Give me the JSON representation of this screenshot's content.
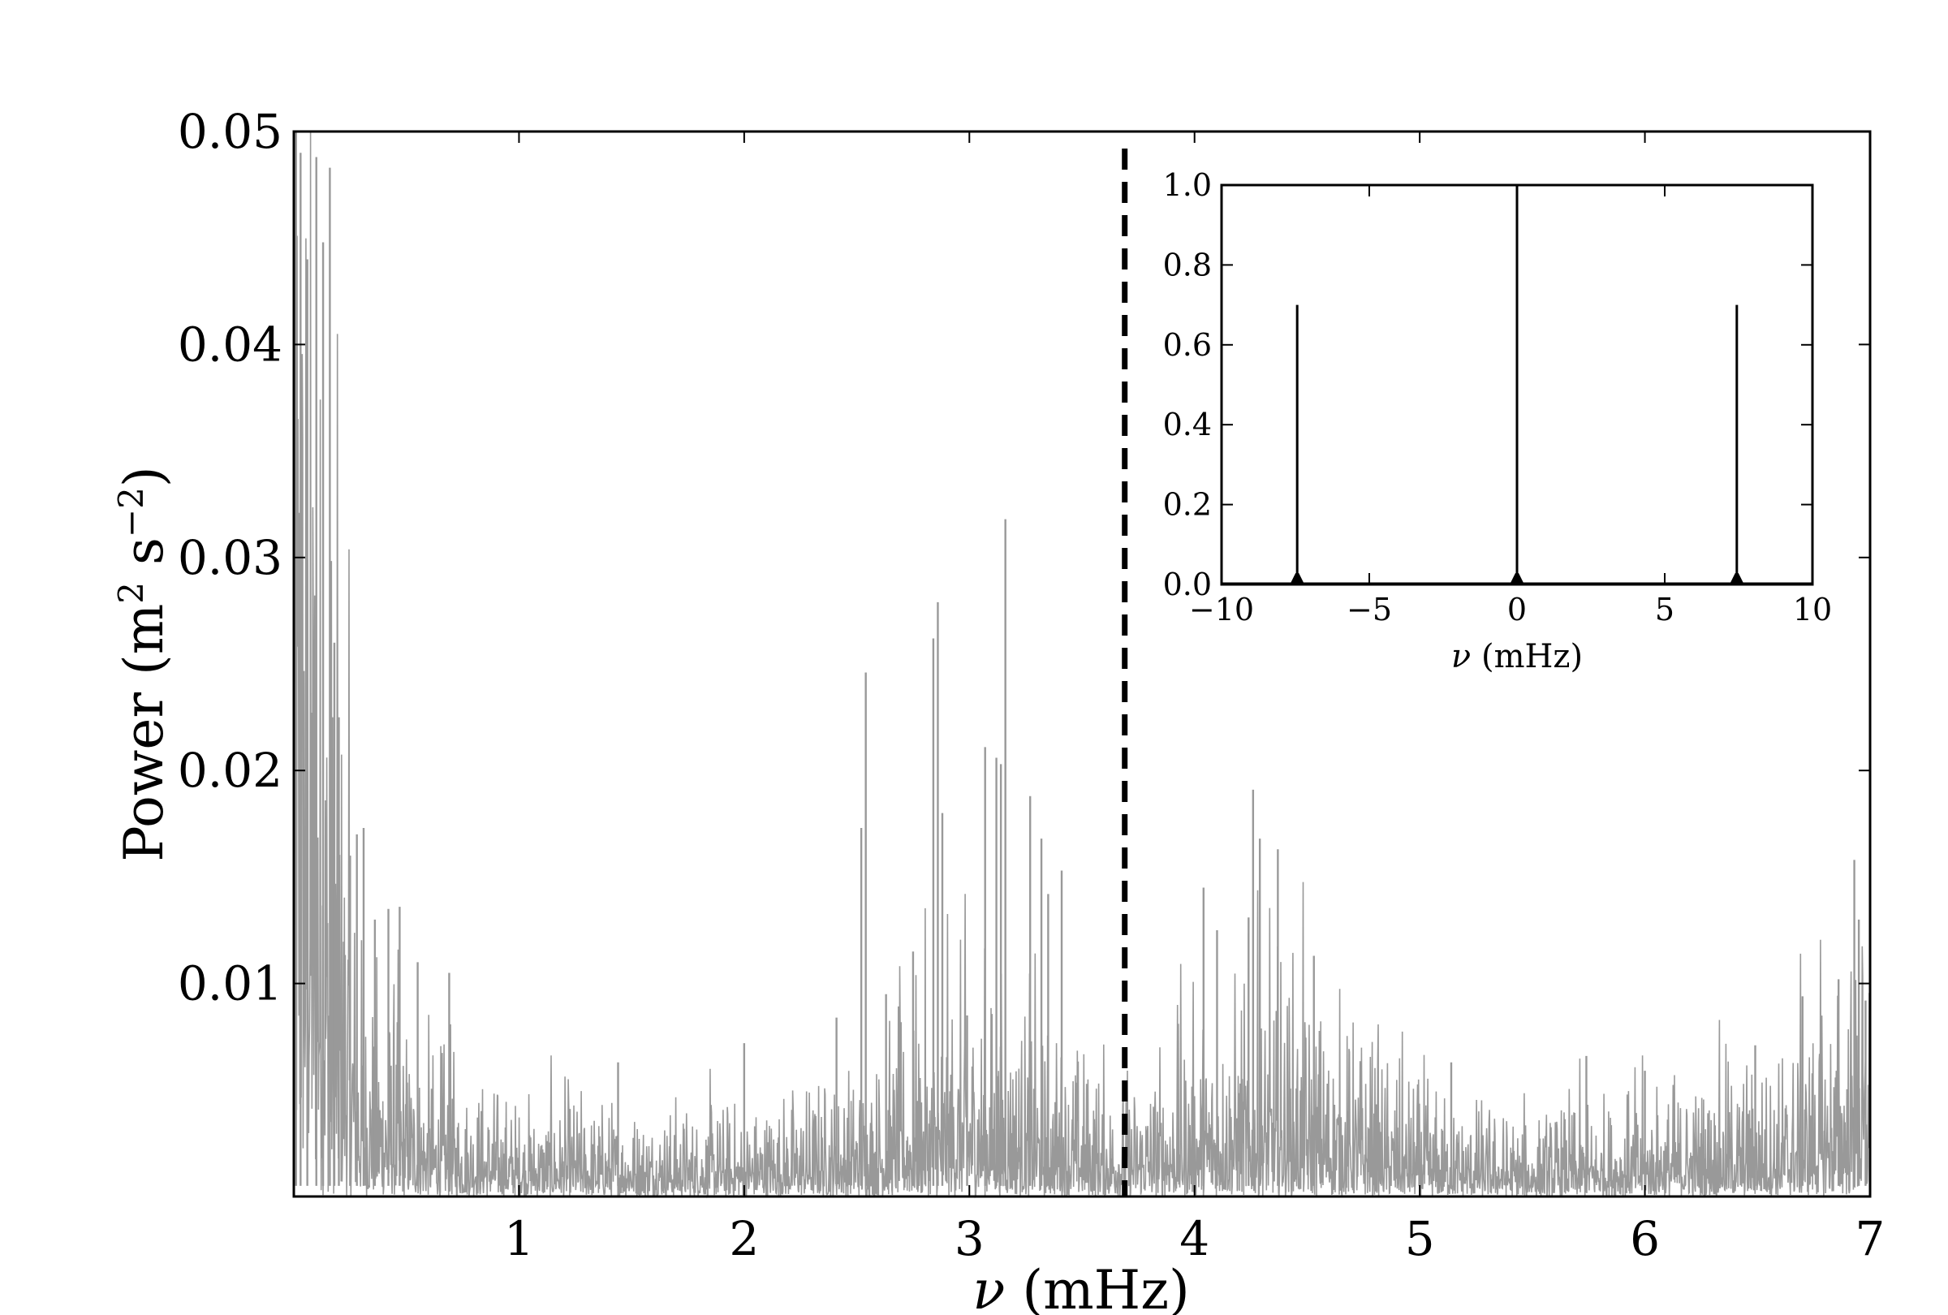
{
  "chart_data": [
    {
      "type": "line",
      "xlabel": {
        "symbol": "ν",
        "unit": " (mHz)"
      },
      "ylabel": {
        "text": "Power (m",
        "sup1": "2",
        "mid": " s",
        "sup2": "−2",
        "end": ")"
      },
      "xlim": [
        0,
        7
      ],
      "ylim": [
        0,
        0.05
      ],
      "x_ticks": [
        1,
        2,
        3,
        4,
        5,
        6,
        7
      ],
      "x_tick_labels": [
        "1",
        "2",
        "3",
        "4",
        "5",
        "6",
        "7"
      ],
      "y_ticks": [
        0.01,
        0.02,
        0.03,
        0.04,
        0.05
      ],
      "y_tick_labels": [
        "0.01",
        "0.02",
        "0.03",
        "0.04",
        "0.05"
      ],
      "series_color": "#999999",
      "noise_floor": 0.0012,
      "envelope": [
        {
          "x": 0.0,
          "level": 0.025
        },
        {
          "x": 0.15,
          "level": 0.012
        },
        {
          "x": 0.3,
          "level": 0.004
        },
        {
          "x": 0.6,
          "level": 0.0022
        },
        {
          "x": 1.0,
          "level": 0.0015
        },
        {
          "x": 2.0,
          "level": 0.0014
        },
        {
          "x": 2.5,
          "level": 0.002
        },
        {
          "x": 3.0,
          "level": 0.0035
        },
        {
          "x": 3.5,
          "level": 0.0022
        },
        {
          "x": 3.7,
          "level": 0.0018
        },
        {
          "x": 4.1,
          "level": 0.003
        },
        {
          "x": 4.4,
          "level": 0.0034
        },
        {
          "x": 5.0,
          "level": 0.0016
        },
        {
          "x": 5.5,
          "level": 0.0012
        },
        {
          "x": 6.0,
          "level": 0.0016
        },
        {
          "x": 6.6,
          "level": 0.0022
        },
        {
          "x": 7.0,
          "level": 0.004
        }
      ],
      "peaks": [
        {
          "x": 0.01,
          "y": 0.05
        },
        {
          "x": 0.03,
          "y": 0.049
        },
        {
          "x": 0.06,
          "y": 0.044
        },
        {
          "x": 0.1,
          "y": 0.0488
        },
        {
          "x": 0.13,
          "y": 0.0448
        },
        {
          "x": 0.16,
          "y": 0.0483
        },
        {
          "x": 0.18,
          "y": 0.026
        },
        {
          "x": 0.2,
          "y": 0.0225
        },
        {
          "x": 0.25,
          "y": 0.016
        },
        {
          "x": 0.28,
          "y": 0.017
        },
        {
          "x": 0.31,
          "y": 0.0173
        },
        {
          "x": 0.36,
          "y": 0.013
        },
        {
          "x": 0.42,
          "y": 0.0135
        },
        {
          "x": 0.47,
          "y": 0.0136
        },
        {
          "x": 0.55,
          "y": 0.011
        },
        {
          "x": 0.69,
          "y": 0.0105
        },
        {
          "x": 1.44,
          "y": 0.0063
        },
        {
          "x": 2.0,
          "y": 0.0072
        },
        {
          "x": 2.41,
          "y": 0.0084
        },
        {
          "x": 2.52,
          "y": 0.0173
        },
        {
          "x": 2.54,
          "y": 0.0246
        },
        {
          "x": 2.63,
          "y": 0.0095
        },
        {
          "x": 2.75,
          "y": 0.0115
        },
        {
          "x": 2.84,
          "y": 0.0262
        },
        {
          "x": 2.86,
          "y": 0.0279
        },
        {
          "x": 2.88,
          "y": 0.018
        },
        {
          "x": 2.99,
          "y": 0.0085
        },
        {
          "x": 3.07,
          "y": 0.0211
        },
        {
          "x": 3.12,
          "y": 0.0206
        },
        {
          "x": 3.14,
          "y": 0.0203
        },
        {
          "x": 3.16,
          "y": 0.0318
        },
        {
          "x": 3.27,
          "y": 0.0188
        },
        {
          "x": 3.32,
          "y": 0.0168
        },
        {
          "x": 3.35,
          "y": 0.0142
        },
        {
          "x": 3.41,
          "y": 0.0153
        },
        {
          "x": 4.04,
          "y": 0.0145
        },
        {
          "x": 4.1,
          "y": 0.0125
        },
        {
          "x": 4.24,
          "y": 0.0131
        },
        {
          "x": 4.26,
          "y": 0.0191
        },
        {
          "x": 4.29,
          "y": 0.0168
        },
        {
          "x": 4.37,
          "y": 0.0163
        },
        {
          "x": 4.53,
          "y": 0.0113
        },
        {
          "x": 5.14,
          "y": 0.0063
        },
        {
          "x": 5.74,
          "y": 0.0066
        },
        {
          "x": 6.0,
          "y": 0.0059
        },
        {
          "x": 6.49,
          "y": 0.0071
        },
        {
          "x": 6.7,
          "y": 0.0094
        },
        {
          "x": 6.86,
          "y": 0.0102
        },
        {
          "x": 6.93,
          "y": 0.0158
        },
        {
          "x": 6.95,
          "y": 0.013
        },
        {
          "x": 6.98,
          "y": 0.0092
        }
      ],
      "vline": {
        "x": 3.69,
        "style": "dashed",
        "color": "#000000"
      }
    },
    {
      "type": "line",
      "role": "inset",
      "xlabel": {
        "symbol": "ν",
        "unit": " (mHz)"
      },
      "xlim": [
        -10,
        10
      ],
      "ylim": [
        0,
        1
      ],
      "x_ticks": [
        -10,
        -5,
        0,
        5,
        10
      ],
      "x_tick_labels": [
        "−10",
        "−5",
        "0",
        "5",
        "10"
      ],
      "y_ticks": [
        0,
        0.2,
        0.4,
        0.6,
        0.8,
        1.0
      ],
      "y_tick_labels": [
        "0.0",
        "0.2",
        "0.4",
        "0.6",
        "0.8",
        "1.0"
      ],
      "series_color": "#000000",
      "peaks": [
        {
          "x": -7.44,
          "y": 0.7
        },
        {
          "x": 0.0,
          "y": 1.0
        },
        {
          "x": 7.44,
          "y": 0.7
        }
      ]
    }
  ]
}
